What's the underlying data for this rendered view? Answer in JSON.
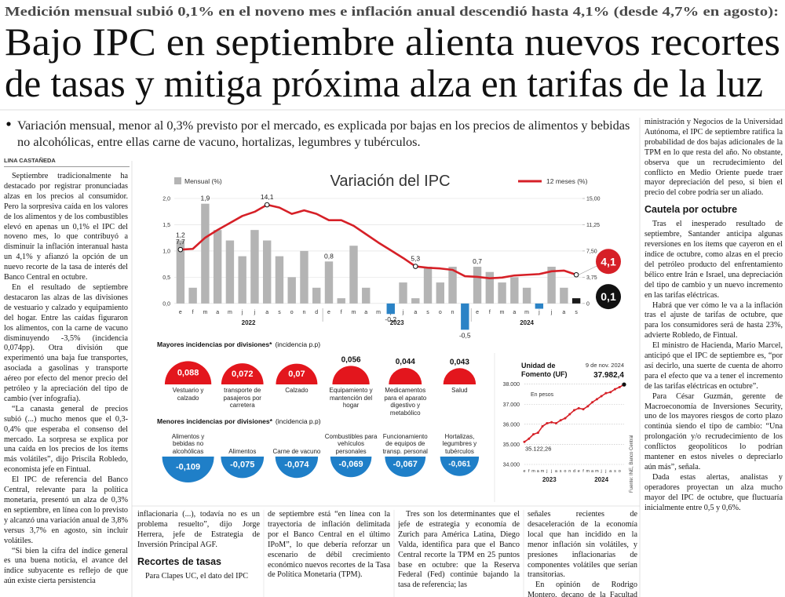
{
  "header": {
    "kicker": "Medición mensual subió 0,1% en el noveno mes e inflación anual descendió hasta 4,1% (desde 4,7% en agosto):",
    "title": [
      "Bajo IPC en septiembre alienta nuevos recortes",
      "de tasas y mitiga próxima alza en tarifas de la luz"
    ],
    "deck": "Variación mensual, menor al 0,3% previsto por el mercado, es explicada por bajas en los precios de alimentos y bebidas no alcohólicas, entre ellas carne de vacuno, hortalizas, legumbres y tubérculos.",
    "byline": "LINA CASTAÑEDA"
  },
  "article": {
    "column_1": [
      "Septiembre tradicionalmente ha destacado por registrar pronunciadas alzas en los precios al consumidor. Pero la sorpresiva caída en los valores de los alimentos y de los combustibles elevó en apenas un 0,1% el IPC del noveno mes, lo que contribuyó a disminuir la inflación interanual hasta un 4,1% y afianzó la opción de un nuevo recorte de la tasa de interés del Banco Central en octubre.",
      "En el resultado de septiembre destacaron las alzas de las divisiones de vestuario y calzado y equipamiento del hogar. Entre las caídas figuraron los alimentos, con la carne de vacuno disminuyendo -3,5% (incidencia 0,074pp). Otra división que experimentó una baja fue transportes, asociada a gasolinas y transporte aéreo por efecto del menor precio del petróleo y la apreciación del tipo de cambio (ver infografía).",
      "“La canasta general de precios subió (...) mucho menos que el 0,3-0,4% que esperaba el consenso del mercado. La sorpresa se explica por una caída en los precios de los ítems más volátiles”, dijo Priscila Robledo, economista jefe en Fintual.",
      "El IPC de referencia del Banco Central, relevante para la política monetaria, presentó un alza de 0,3% en septiembre, en línea con lo previsto y alcanzó una variación anual de 3,8% versus 3,7% en agosto, sin incluir volátiles.",
      "“Si bien la cifra del índice general es una buena noticia, el avance del índice subyacente es reflejo de que aún existe cierta persistencia"
    ],
    "bottom_columns": [
      [
        "inflacionaria (...), todavía no es un problema resuelto”, dijo Jorge Herrera, jefe de Estrategia de Inversión Principal AGF.",
        {
          "subhead": "Recortes de tasas"
        },
        "Para Clapes UC, el dato del IPC"
      ],
      [
        "de septiembre está “en línea con la trayectoria de inflación delimitada por el Banco Central en el último IPoM”, lo que debería reforzar un escenario de débil crecimiento económico nuevos recortes de la Tasa de Política Monetaria (TPM)."
      ],
      [
        "Tres son los determinantes que el jefe de estrategia y economía de Zurich para América Latina, Diego Valda, identifica para que el Banco Central recorte la TPM en 25 puntos base en octubre: que la Reserva Federal (Fed) continúe bajando la tasa de referencia; las"
      ],
      [
        "señales recientes de desaceleración de la economía local que han incidido en la menor inflación sin volátiles, y presiones inflacionarias de componentes volátiles que serían transitorias.",
        "En opinión de Rodrigo Montero, decano de la Facultad de Ad-"
      ]
    ],
    "right_column": [
      "ministración y Negocios de la Universidad Autónoma, el IPC de septiembre ratifica la probabilidad de dos bajas adicionales de la TPM en lo que resta del año. No obstante, observa que un recrudecimiento del conflicto en Medio Oriente puede traer mayor depreciación del peso, si bien el precio del cobre podría ser un aliado.",
      {
        "subhead": "Cautela por octubre"
      },
      "Tras el inesperado resultado de septiembre, Santander anticipa algunas reversiones en los ítems que cayeron en el índice de octubre, como alzas en el precio del petróleo producto del enfrentamiento bélico entre Irán e Israel, una depreciación del tipo de cambio y un nuevo incremento en las tarifas eléctricas.",
      "Habrá que ver cómo le va a la inflación tras el ajuste de tarifas de octubre, que para los consumidores será de hasta 23%, advierte Robledo, de Fintual.",
      "El ministro de Hacienda, Mario Marcel, anticipó que el IPC de septiembre es, “por así decirlo, una suerte de cuenta de ahorro para el efecto que va a tener el incremento de las tarifas eléctricas en octubre”.",
      "Para César Guzmán, gerente de Macroeconomía de Inversiones Security, uno de los mayores riesgos de corto plazo continúa siendo el tipo de cambio: “Una prolongación y/o recrudecimiento de los conflictos geopolíticos lo podrían mantener en estos niveles o depreciarlo aún más”, señala.",
      "Dada estas alertas, analistas y operadores proyectan un alza mucho mayor del IPC de octubre, que fluctuaría inicialmente entre 0,5 y 0,6%."
    ]
  },
  "chart_data": [
    {
      "type": "bar-line",
      "title": "Variación del IPC",
      "categories": [
        "e",
        "f",
        "m",
        "a",
        "m",
        "j",
        "j",
        "a",
        "s",
        "o",
        "n",
        "d",
        "e",
        "f",
        "m",
        "a",
        "m",
        "j",
        "j",
        "a",
        "s",
        "o",
        "n",
        "d",
        "e",
        "f",
        "m",
        "a",
        "m",
        "j",
        "j",
        "a",
        "s"
      ],
      "years": [
        "2022",
        "2023",
        "2024"
      ],
      "series": [
        {
          "name": "Mensual (%)",
          "type": "bar",
          "color": "#b4b4b4",
          "negative_color": "#2b83c6",
          "last_color": "#1a1a1a",
          "values": [
            1.2,
            0.3,
            1.9,
            1.4,
            1.2,
            0.9,
            1.4,
            1.2,
            0.9,
            0.5,
            1.0,
            0.3,
            0.8,
            0.1,
            1.1,
            0.3,
            0.0,
            -0.2,
            0.4,
            0.1,
            0.7,
            0.4,
            0.7,
            -0.5,
            0.7,
            0.6,
            0.4,
            0.5,
            0.3,
            -0.1,
            0.7,
            0.3,
            0.1
          ],
          "value_labels": [
            "1,2",
            null,
            "1,9",
            null,
            null,
            null,
            null,
            null,
            null,
            null,
            null,
            null,
            "0,8",
            null,
            null,
            null,
            null,
            "-0,2",
            null,
            null,
            null,
            null,
            null,
            "-0,5",
            "0,7",
            null,
            null,
            null,
            null,
            null,
            null,
            null,
            "0,1"
          ]
        },
        {
          "name": "12 meses (%)",
          "type": "line",
          "axis": "y2",
          "color": "#d62027",
          "values": [
            7.7,
            7.8,
            9.4,
            10.5,
            11.5,
            12.5,
            13.1,
            14.1,
            13.7,
            12.8,
            13.3,
            12.8,
            11.9,
            11.9,
            11.1,
            9.9,
            8.7,
            7.6,
            6.5,
            5.3,
            5.1,
            5.0,
            4.8,
            3.9,
            3.8,
            3.6,
            3.7,
            4.0,
            4.1,
            4.2,
            4.6,
            4.7,
            4.1
          ],
          "value_labels": [
            "7,7",
            null,
            null,
            null,
            null,
            null,
            null,
            "14,1",
            null,
            null,
            null,
            null,
            null,
            null,
            null,
            null,
            null,
            null,
            null,
            "5,3",
            null,
            null,
            null,
            null,
            null,
            null,
            null,
            null,
            null,
            null,
            null,
            null,
            "4,1"
          ]
        }
      ],
      "ylim": [
        -0.6,
        2.0
      ],
      "yticks": [
        {
          "value": 0,
          "label": "0,0"
        },
        {
          "value": 0.5,
          "label": "0,5"
        },
        {
          "value": 1,
          "label": "1,0"
        },
        {
          "value": 1.5,
          "label": "1,5"
        },
        {
          "value": 2,
          "label": "2,0"
        }
      ],
      "y2lim": [
        -4.5,
        15
      ],
      "y2ticks": [
        0,
        {
          "value": 3.75,
          "label": "3,75"
        },
        {
          "value": 7.5,
          "label": "7,50"
        },
        {
          "value": 11.25,
          "label": "11,25"
        },
        {
          "value": 15,
          "label": "15,00"
        }
      ],
      "grid": true
    },
    {
      "type": "semicircle",
      "title": "Mayores incidencias por divisiones*",
      "subtitle": "(incidencia p.p)",
      "color": "#e3161d",
      "categories": [
        "Vestuario y calzado",
        "transporte de pasajeros por carretera",
        "Calzado",
        "Equipamiento y mantención del hogar",
        "Medicamentos para el aparato digestivo y metabólico",
        "Salud"
      ],
      "values": [
        0.088,
        0.072,
        0.07,
        0.056,
        0.044,
        0.043
      ],
      "value_labels": [
        "0,088",
        "0,072",
        "0,07",
        "0,056",
        "0,044",
        "0,043"
      ]
    },
    {
      "type": "semicircle",
      "title": "Menores incidencias por divisiones*",
      "subtitle": "(incidencia p.p)",
      "color": "#1f7fc8",
      "categories": [
        "Alimentos y bebidas no alcohólicas",
        "Alimentos",
        "Carne de vacuno",
        "Combustibles para vehículos personales",
        "Funcionamiento de equipos de transp. personal",
        "Hortalizas, legumbres y tubérculos"
      ],
      "values": [
        -0.109,
        -0.075,
        -0.074,
        -0.069,
        -0.067,
        -0.061
      ],
      "value_labels": [
        "-0,109",
        "-0,075",
        "-0,074",
        "-0,069",
        "-0,067",
        "-0,061"
      ]
    },
    {
      "type": "line",
      "title": "Unidad de Fomento (UF)",
      "date_label": "9 de nov. 2024",
      "unit": "En pesos",
      "source": "Fuente: INE, Banco Central",
      "color": "#d62027",
      "categories": [
        "e",
        "f",
        "m",
        "a",
        "m",
        "j",
        "j",
        "a",
        "s",
        "o",
        "n",
        "d",
        "e",
        "f",
        "m",
        "a",
        "m",
        "j",
        "j",
        "a",
        "s",
        "o",
        null
      ],
      "years": [
        "2023",
        "2024"
      ],
      "values": [
        35122.26,
        35280,
        35500,
        35580,
        35900,
        36050,
        36100,
        36050,
        36200,
        36300,
        36500,
        36700,
        36800,
        36750,
        36900,
        37100,
        37250,
        37400,
        37550,
        37600,
        37750,
        37850,
        37982.4
      ],
      "value_labels": [
        "35.122,26",
        null,
        null,
        null,
        null,
        null,
        null,
        null,
        null,
        null,
        null,
        null,
        null,
        null,
        null,
        null,
        null,
        null,
        null,
        null,
        null,
        null,
        "37.982,4"
      ],
      "ylim": [
        34000,
        38300
      ],
      "yticks": [
        {
          "value": 34000,
          "label": "34.000"
        },
        {
          "value": 35000,
          "label": "35.000"
        },
        {
          "value": 36000,
          "label": "36.000"
        },
        {
          "value": 37000,
          "label": "37.000"
        },
        {
          "value": 38000,
          "label": "38.000"
        }
      ],
      "grid": true
    }
  ]
}
